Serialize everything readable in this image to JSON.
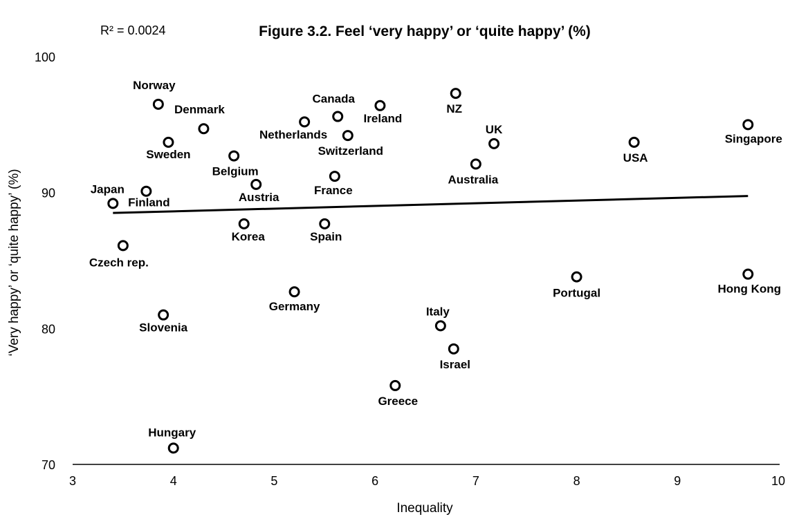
{
  "chart_data": {
    "type": "scatter",
    "title": "Figure 3.2. Feel ‘very happy’ or ‘quite happy’ (%)",
    "annotation": "R² = 0.0024",
    "xlabel": "Inequality",
    "ylabel": "‘Very happy’ or ‘quite happy’ (%)",
    "xlim": [
      3,
      10
    ],
    "ylim": [
      70,
      100
    ],
    "x_ticks": [
      "3",
      "4",
      "5",
      "6",
      "7",
      "8",
      "9",
      "10"
    ],
    "y_ticks": [
      "70",
      "80",
      "90",
      "100"
    ],
    "points": [
      {
        "label": "Norway",
        "x": 3.85,
        "y": 96.5
      },
      {
        "label": "Denmark",
        "x": 4.3,
        "y": 94.7
      },
      {
        "label": "Sweden",
        "x": 3.95,
        "y": 93.7
      },
      {
        "label": "Belgium",
        "x": 4.6,
        "y": 92.7
      },
      {
        "label": "Japan",
        "x": 3.4,
        "y": 89.2
      },
      {
        "label": "Finland",
        "x": 3.73,
        "y": 90.1
      },
      {
        "label": "Austria",
        "x": 4.82,
        "y": 90.6
      },
      {
        "label": "Czech rep.",
        "x": 3.5,
        "y": 86.1
      },
      {
        "label": "Korea",
        "x": 4.7,
        "y": 87.7
      },
      {
        "label": "Slovenia",
        "x": 3.9,
        "y": 81.0
      },
      {
        "label": "Germany",
        "x": 5.2,
        "y": 82.7
      },
      {
        "label": "Hungary",
        "x": 4.0,
        "y": 71.2
      },
      {
        "label": "Netherlands",
        "x": 5.3,
        "y": 95.2
      },
      {
        "label": "Canada",
        "x": 5.63,
        "y": 95.6
      },
      {
        "label": "Switzerland",
        "x": 5.73,
        "y": 94.2
      },
      {
        "label": "France",
        "x": 5.6,
        "y": 91.2
      },
      {
        "label": "Spain",
        "x": 5.5,
        "y": 87.7
      },
      {
        "label": "Ireland",
        "x": 6.05,
        "y": 96.4
      },
      {
        "label": "NZ",
        "x": 6.8,
        "y": 97.3
      },
      {
        "label": "UK",
        "x": 7.18,
        "y": 93.6
      },
      {
        "label": "Australia",
        "x": 7.0,
        "y": 92.1
      },
      {
        "label": "Italy",
        "x": 6.65,
        "y": 80.2
      },
      {
        "label": "Israel",
        "x": 6.78,
        "y": 78.5
      },
      {
        "label": "Greece",
        "x": 6.2,
        "y": 75.8
      },
      {
        "label": "USA",
        "x": 8.57,
        "y": 93.7
      },
      {
        "label": "Singapore",
        "x": 9.7,
        "y": 95.0
      },
      {
        "label": "Portugal",
        "x": 8.0,
        "y": 83.8
      },
      {
        "label": "Hong Kong",
        "x": 9.7,
        "y": 84.0
      }
    ],
    "trendline": {
      "x": [
        3.4,
        9.7
      ],
      "y": [
        88.5,
        89.75
      ]
    }
  }
}
